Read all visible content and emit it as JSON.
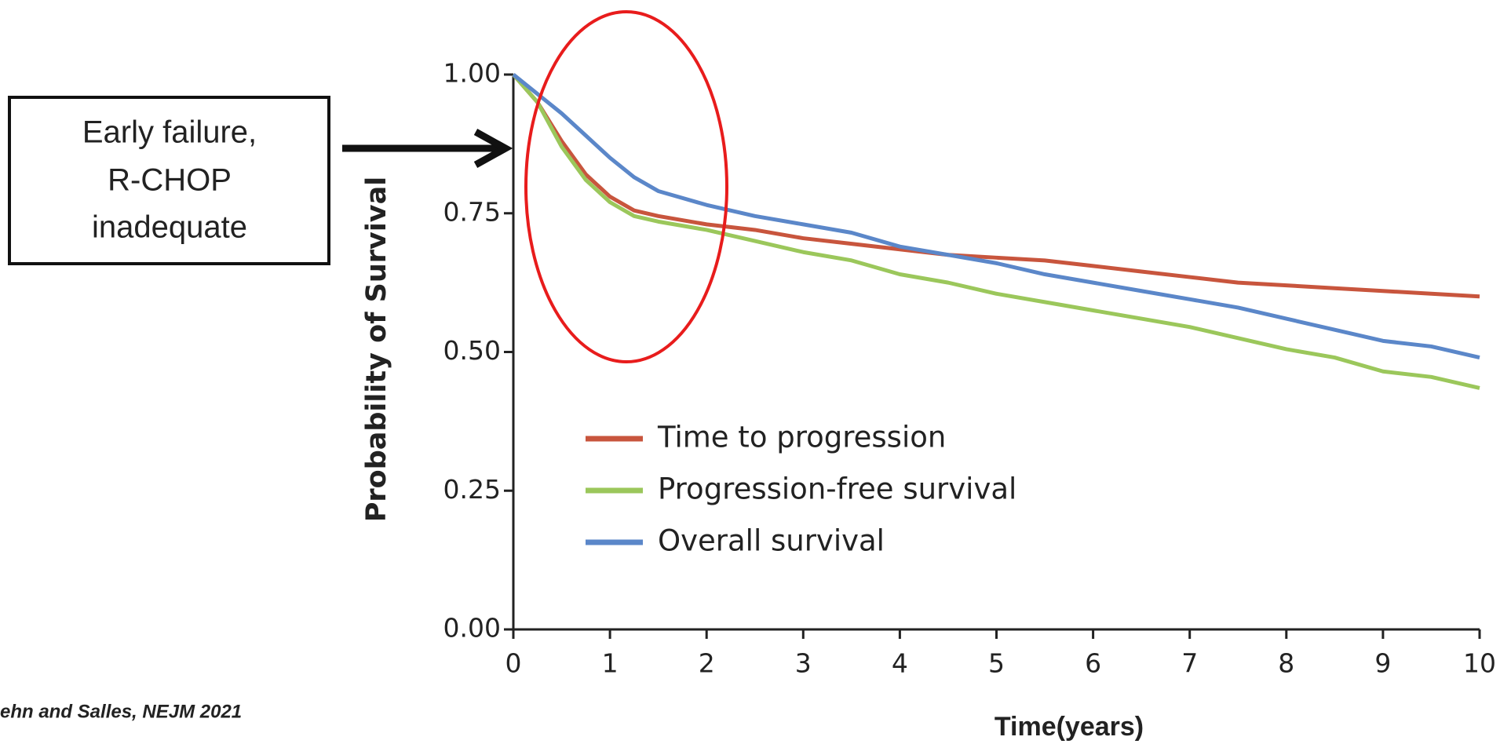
{
  "chart_data": {
    "type": "line",
    "y_label": "Probability of Survival",
    "x_label": "Time(years)",
    "annotation": [
      "Early failure,",
      "R-CHOP",
      "inadequate"
    ],
    "source": "ehn and Salles, NEJM 2021",
    "x": [
      0,
      0.25,
      0.5,
      0.75,
      1,
      1.25,
      1.5,
      2,
      2.5,
      3,
      3.5,
      4,
      4.5,
      5,
      5.5,
      6,
      6.5,
      7,
      7.5,
      8,
      8.5,
      9,
      9.5,
      10
    ],
    "series": [
      {
        "name": "Time to progression",
        "color": "#c8553d",
        "values": [
          1.0,
          0.95,
          0.88,
          0.82,
          0.78,
          0.755,
          0.745,
          0.73,
          0.72,
          0.705,
          0.695,
          0.685,
          0.675,
          0.67,
          0.665,
          0.655,
          0.645,
          0.635,
          0.625,
          0.62,
          0.615,
          0.61,
          0.605,
          0.6
        ]
      },
      {
        "name": "Progression-free survival",
        "color": "#9bc75b",
        "values": [
          1.0,
          0.95,
          0.87,
          0.81,
          0.77,
          0.745,
          0.735,
          0.72,
          0.7,
          0.68,
          0.665,
          0.64,
          0.625,
          0.605,
          0.59,
          0.575,
          0.56,
          0.545,
          0.525,
          0.505,
          0.49,
          0.465,
          0.455,
          0.435
        ]
      },
      {
        "name": "Overall survival",
        "color": "#5b87c9",
        "values": [
          1.0,
          0.965,
          0.93,
          0.89,
          0.85,
          0.815,
          0.79,
          0.765,
          0.745,
          0.73,
          0.715,
          0.69,
          0.675,
          0.66,
          0.64,
          0.625,
          0.61,
          0.595,
          0.58,
          0.56,
          0.54,
          0.52,
          0.51,
          0.49
        ]
      }
    ],
    "xlim": [
      0,
      10
    ],
    "xticks": [
      0,
      1,
      2,
      3,
      4,
      5,
      6,
      7,
      8,
      9,
      10
    ],
    "ylim": [
      0,
      1
    ],
    "yticks": [
      {
        "value": 0,
        "label": "0.00"
      },
      0.25,
      {
        "value": 0.5,
        "label": "0.50"
      },
      0.75,
      {
        "value": 1,
        "label": "1.00"
      }
    ],
    "grid": false
  }
}
